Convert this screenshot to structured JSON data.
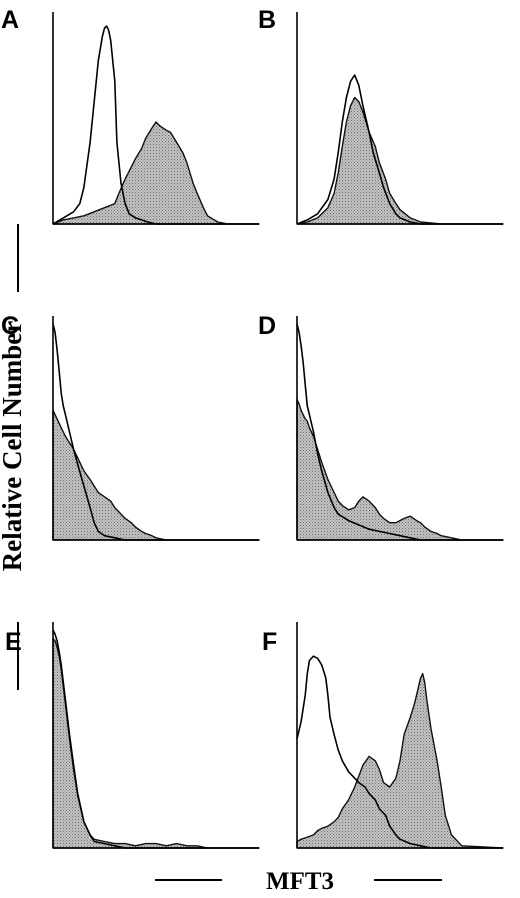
{
  "figure": {
    "ylabel": "Relative Cell Number",
    "xlabel": "MFT3"
  },
  "chart_data": [
    {
      "type": "area",
      "panel": "A",
      "xlim": [
        0,
        100
      ],
      "ylim": [
        0,
        100
      ],
      "series": [
        {
          "style": "open",
          "x": [
            0,
            5,
            10,
            13,
            15,
            18,
            20,
            22,
            24,
            25,
            26,
            27,
            28,
            30,
            31,
            33,
            35,
            37,
            40,
            43,
            46,
            50,
            55,
            60,
            70,
            80,
            100
          ],
          "y": [
            0,
            3,
            6,
            10,
            18,
            40,
            60,
            80,
            92,
            96,
            97,
            95,
            90,
            70,
            40,
            20,
            10,
            5,
            3,
            2,
            1,
            0,
            0,
            0,
            0,
            0,
            0
          ]
        },
        {
          "style": "filled",
          "x": [
            0,
            5,
            10,
            15,
            20,
            25,
            30,
            32,
            35,
            38,
            40,
            43,
            45,
            48,
            50,
            52,
            55,
            57,
            60,
            63,
            65,
            68,
            70,
            73,
            75,
            80,
            85,
            90,
            100
          ],
          "y": [
            0,
            2,
            3,
            4,
            6,
            8,
            10,
            15,
            22,
            28,
            32,
            37,
            42,
            47,
            50,
            48,
            46,
            45,
            40,
            35,
            30,
            20,
            15,
            8,
            4,
            1,
            0,
            0,
            0
          ]
        }
      ]
    },
    {
      "type": "area",
      "panel": "B",
      "xlim": [
        0,
        100
      ],
      "ylim": [
        0,
        100
      ],
      "series": [
        {
          "style": "open",
          "x": [
            0,
            5,
            10,
            15,
            18,
            20,
            22,
            24,
            26,
            28,
            30,
            32,
            35,
            37,
            40,
            42,
            45,
            48,
            50,
            55,
            60,
            100
          ],
          "y": [
            0,
            2,
            5,
            12,
            22,
            35,
            50,
            62,
            70,
            73,
            68,
            58,
            45,
            35,
            25,
            18,
            10,
            5,
            3,
            1,
            0,
            0
          ]
        },
        {
          "style": "filled",
          "x": [
            0,
            5,
            10,
            15,
            18,
            20,
            22,
            24,
            26,
            28,
            30,
            32,
            35,
            38,
            40,
            43,
            45,
            48,
            50,
            55,
            60,
            70,
            80,
            100
          ],
          "y": [
            0,
            1,
            3,
            8,
            15,
            25,
            38,
            50,
            58,
            62,
            60,
            55,
            45,
            38,
            30,
            22,
            15,
            10,
            7,
            3,
            1,
            0,
            0,
            0
          ]
        }
      ]
    },
    {
      "type": "area",
      "panel": "C",
      "xlim": [
        0,
        100
      ],
      "ylim": [
        0,
        100
      ],
      "series": [
        {
          "style": "open",
          "x": [
            0,
            1,
            2,
            3,
            4,
            5,
            6,
            8,
            10,
            12,
            15,
            18,
            20,
            22,
            25,
            30,
            35,
            40,
            50,
            100
          ],
          "y": [
            100,
            96,
            88,
            78,
            68,
            62,
            58,
            50,
            42,
            35,
            25,
            15,
            8,
            4,
            2,
            1,
            0,
            0,
            0,
            0
          ]
        },
        {
          "style": "filled",
          "x": [
            0,
            1,
            2,
            3,
            4,
            5,
            6,
            8,
            10,
            12,
            15,
            18,
            20,
            22,
            25,
            28,
            30,
            33,
            35,
            38,
            40,
            43,
            45,
            48,
            50,
            55,
            60,
            100
          ],
          "y": [
            60,
            58,
            56,
            54,
            52,
            50,
            48,
            45,
            42,
            38,
            32,
            28,
            25,
            22,
            20,
            18,
            15,
            12,
            10,
            8,
            6,
            4,
            3,
            2,
            1,
            0,
            0,
            0
          ]
        }
      ]
    },
    {
      "type": "area",
      "panel": "D",
      "xlim": [
        0,
        100
      ],
      "ylim": [
        0,
        100
      ],
      "series": [
        {
          "style": "open",
          "x": [
            0,
            1,
            2,
            3,
            4,
            5,
            6,
            8,
            10,
            12,
            15,
            18,
            20,
            25,
            30,
            35,
            40,
            45,
            50,
            55,
            60,
            100
          ],
          "y": [
            100,
            96,
            90,
            82,
            72,
            62,
            58,
            50,
            40,
            32,
            22,
            15,
            12,
            9,
            7,
            5,
            4,
            3,
            2,
            1,
            0,
            0
          ]
        },
        {
          "style": "filled",
          "x": [
            0,
            1,
            2,
            3,
            4,
            5,
            6,
            8,
            10,
            12,
            15,
            18,
            20,
            22,
            25,
            28,
            30,
            32,
            35,
            38,
            40,
            42,
            45,
            48,
            50,
            52,
            55,
            58,
            60,
            62,
            65,
            68,
            70,
            75,
            80,
            100
          ],
          "y": [
            65,
            63,
            60,
            58,
            56,
            55,
            52,
            48,
            42,
            36,
            28,
            22,
            18,
            16,
            14,
            15,
            18,
            20,
            18,
            15,
            12,
            10,
            8,
            8,
            9,
            10,
            11,
            9,
            8,
            6,
            4,
            3,
            2,
            1,
            0,
            0
          ]
        }
      ]
    },
    {
      "type": "area",
      "panel": "E",
      "xlim": [
        0,
        100
      ],
      "ylim": [
        0,
        100
      ],
      "series": [
        {
          "style": "open",
          "x": [
            0,
            1,
            2,
            3,
            4,
            5,
            6,
            8,
            10,
            12,
            15,
            18,
            20,
            25,
            30,
            35,
            40,
            50,
            100
          ],
          "y": [
            100,
            98,
            95,
            90,
            84,
            76,
            68,
            52,
            38,
            25,
            12,
            6,
            3,
            2,
            1,
            0,
            0,
            0,
            0
          ]
        },
        {
          "style": "filled",
          "x": [
            0,
            1,
            2,
            3,
            4,
            5,
            6,
            8,
            10,
            12,
            15,
            18,
            20,
            25,
            30,
            35,
            40,
            45,
            50,
            55,
            60,
            65,
            70,
            75,
            80,
            85,
            90,
            100
          ],
          "y": [
            96,
            95,
            92,
            88,
            82,
            74,
            66,
            50,
            36,
            24,
            12,
            6,
            4,
            3,
            2,
            2,
            1,
            2,
            2,
            1,
            2,
            1,
            1,
            0,
            0,
            0,
            0,
            0
          ]
        }
      ]
    },
    {
      "type": "area",
      "panel": "F",
      "xlim": [
        0,
        100
      ],
      "ylim": [
        0,
        100
      ],
      "series": [
        {
          "style": "open",
          "x": [
            0,
            2,
            4,
            5,
            6,
            8,
            10,
            12,
            14,
            15,
            16,
            18,
            20,
            22,
            25,
            28,
            30,
            33,
            35,
            38,
            40,
            43,
            45,
            48,
            50,
            55,
            60,
            65,
            70,
            75,
            80,
            100
          ],
          "y": [
            50,
            58,
            70,
            80,
            86,
            88,
            87,
            84,
            78,
            70,
            60,
            52,
            45,
            40,
            35,
            32,
            30,
            28,
            25,
            22,
            18,
            15,
            10,
            6,
            4,
            2,
            1,
            0,
            0,
            0,
            0,
            0
          ]
        },
        {
          "style": "filled",
          "x": [
            0,
            2,
            5,
            8,
            10,
            12,
            15,
            18,
            20,
            22,
            25,
            28,
            30,
            32,
            35,
            38,
            40,
            42,
            45,
            48,
            50,
            52,
            55,
            57,
            58,
            59,
            60,
            61,
            62,
            63,
            65,
            68,
            70,
            72,
            75,
            80,
            100
          ],
          "y": [
            3,
            4,
            5,
            6,
            8,
            9,
            10,
            12,
            14,
            18,
            22,
            28,
            33,
            38,
            42,
            40,
            36,
            30,
            28,
            32,
            40,
            52,
            60,
            66,
            70,
            74,
            78,
            80,
            76,
            68,
            55,
            40,
            28,
            15,
            6,
            1,
            0
          ]
        }
      ]
    }
  ]
}
